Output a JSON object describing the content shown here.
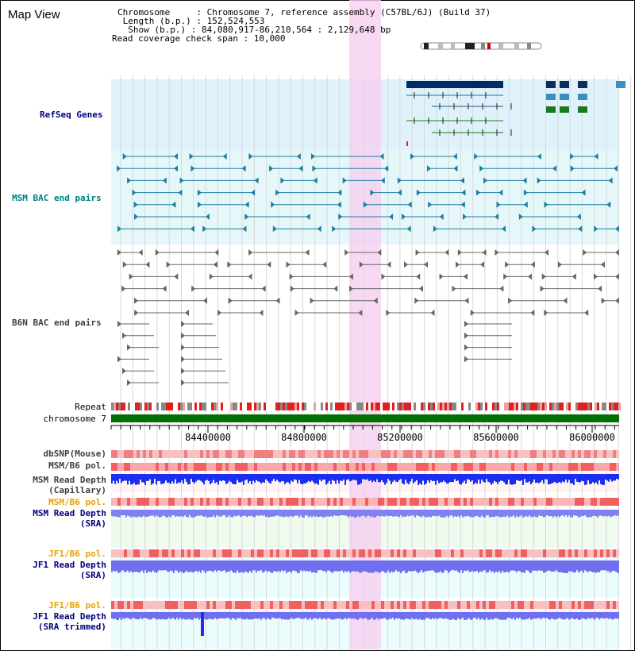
{
  "title": "Map View",
  "info": {
    "chromosome": "Chromosome     : Chromosome 7, reference assembly (C57BL/6J) (Build 37)",
    "length": " Length (b.p.) : 152,524,553",
    "show": "  Show (b.p.) : 84,080,917-86,210,564 : 2,129,648 bp",
    "span": "Read coverage check span : 10,000"
  },
  "tracks": {
    "refseq": "RefSeq Genes",
    "msm_bac": "MSM BAC end pairs",
    "b6n_bac": "B6N BAC end pairs",
    "repeat": "Repeat",
    "chrom": "chromosome 7",
    "dbsnp": "dbSNP(Mouse)",
    "msm_pol": "MSM/B6 pol.",
    "msm_depth_cap_1": "MSM Read Depth",
    "msm_depth_cap_2": "(Capillary)",
    "msm_pol2": "MSM/B6 pol.",
    "msm_depth_sra_1": "MSM Read Depth",
    "msm_depth_sra_2": "(SRA)",
    "jf1_pol": "JF1/B6 pol.",
    "jf1_depth_1": "JF1 Read Depth",
    "jf1_depth_2": "(SRA)",
    "jf1_pol2": "JF1/B6 pol.",
    "jf1_trim_1": "JF1 Read Depth",
    "jf1_trim_2": "(SRA trimmed)"
  },
  "axis": {
    "ticks": [
      "84400000",
      "84800000",
      "85200000",
      "85600000",
      "86000000"
    ]
  },
  "colors": {
    "msm_label": "#008080",
    "refseq_label": "#000080",
    "b6n_label": "#404040",
    "orange_label": "#e8a000",
    "blue_label": "#000080",
    "highlight": "#f5d0f0",
    "refseq_bg": "#dff2fb",
    "msm_bg": "#e6f7fa"
  }
}
